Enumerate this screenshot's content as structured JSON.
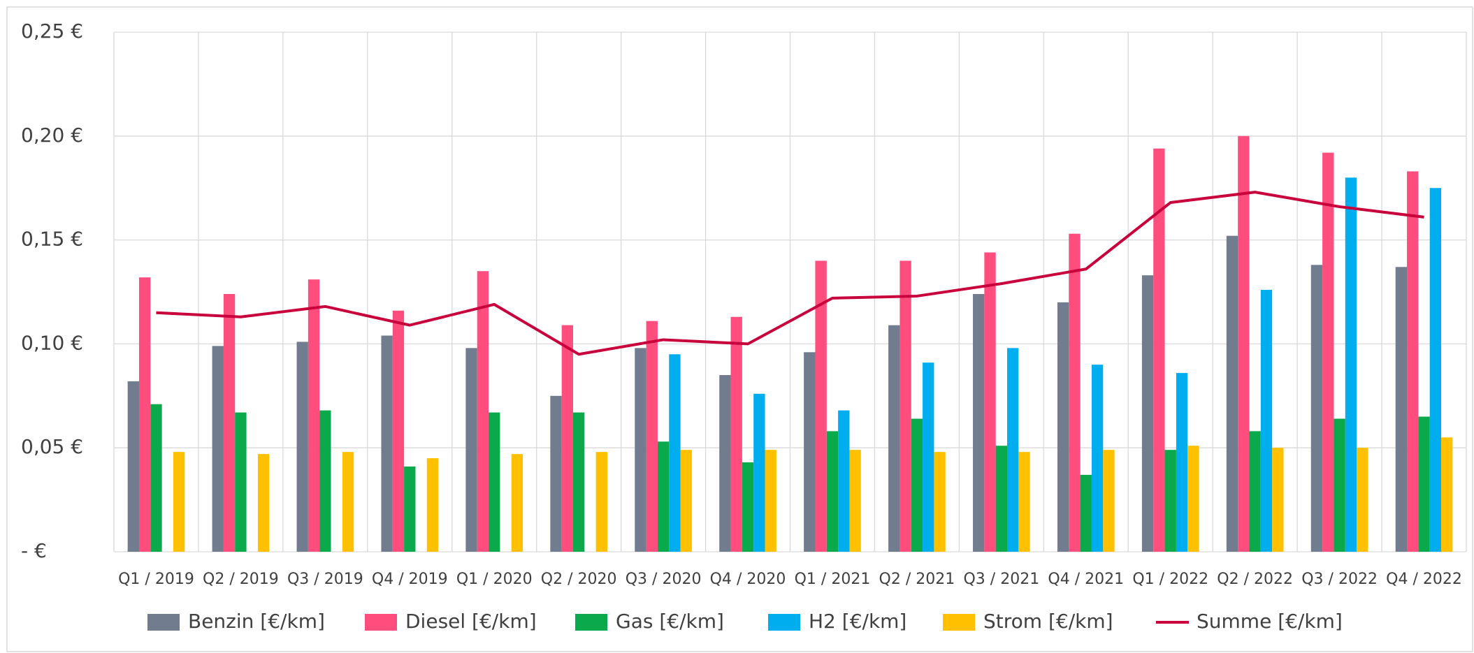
{
  "chart_data": {
    "type": "bar",
    "categories": [
      "Q1 / 2019",
      "Q2 / 2019",
      "Q3 / 2019",
      "Q4 / 2019",
      "Q1 / 2020",
      "Q2 / 2020",
      "Q3 / 2020",
      "Q4 / 2020",
      "Q1 / 2021",
      "Q2 / 2021",
      "Q3 / 2021",
      "Q4 / 2021",
      "Q1 / 2022",
      "Q2 / 2022",
      "Q3 / 2022",
      "Q4 / 2022"
    ],
    "series": [
      {
        "name": "Benzin [€/km]",
        "color": "#717c8f",
        "values": [
          0.082,
          0.099,
          0.101,
          0.104,
          0.098,
          0.075,
          0.098,
          0.085,
          0.096,
          0.109,
          0.124,
          0.12,
          0.133,
          0.152,
          0.138,
          0.137
        ]
      },
      {
        "name": "Diesel [€/km]",
        "color": "#ff4d7d",
        "values": [
          0.132,
          0.124,
          0.131,
          0.116,
          0.135,
          0.109,
          0.111,
          0.113,
          0.14,
          0.14,
          0.144,
          0.153,
          0.194,
          0.2,
          0.192,
          0.183
        ]
      },
      {
        "name": "Gas [€/km]",
        "color": "#0aa94b",
        "values": [
          0.071,
          0.067,
          0.068,
          0.041,
          0.067,
          0.067,
          0.053,
          0.043,
          0.058,
          0.064,
          0.051,
          0.037,
          0.049,
          0.058,
          0.064,
          0.065
        ]
      },
      {
        "name": "H2 [€/km]",
        "color": "#00aeef",
        "values": [
          null,
          null,
          null,
          null,
          null,
          null,
          0.095,
          0.076,
          0.068,
          0.091,
          0.098,
          0.09,
          0.086,
          0.126,
          0.18,
          0.175
        ]
      },
      {
        "name": "Strom [€/km]",
        "color": "#ffc000",
        "values": [
          0.048,
          0.047,
          0.048,
          0.045,
          0.047,
          0.048,
          0.049,
          0.049,
          0.049,
          0.048,
          0.048,
          0.049,
          0.051,
          0.05,
          0.05,
          0.055
        ]
      },
      {
        "name": "Summe [€/km]",
        "color": "#c8003c",
        "type": "line",
        "values": [
          0.115,
          0.113,
          0.118,
          0.109,
          0.119,
          0.095,
          0.102,
          0.1,
          0.122,
          0.123,
          0.129,
          0.136,
          0.168,
          0.173,
          0.166,
          0.161
        ]
      }
    ],
    "ylim": [
      0,
      0.25
    ],
    "yticks": [
      {
        "value": 0,
        "label": "-  €"
      },
      {
        "value": 0.05,
        "label": "0,05 €"
      },
      {
        "value": 0.1,
        "label": "0,10 €"
      },
      {
        "value": 0.15,
        "label": "0,15 €"
      },
      {
        "value": 0.2,
        "label": "0,20 €"
      },
      {
        "value": 0.25,
        "label": "0,25 €"
      }
    ],
    "grid": true,
    "legend": "bottom"
  }
}
